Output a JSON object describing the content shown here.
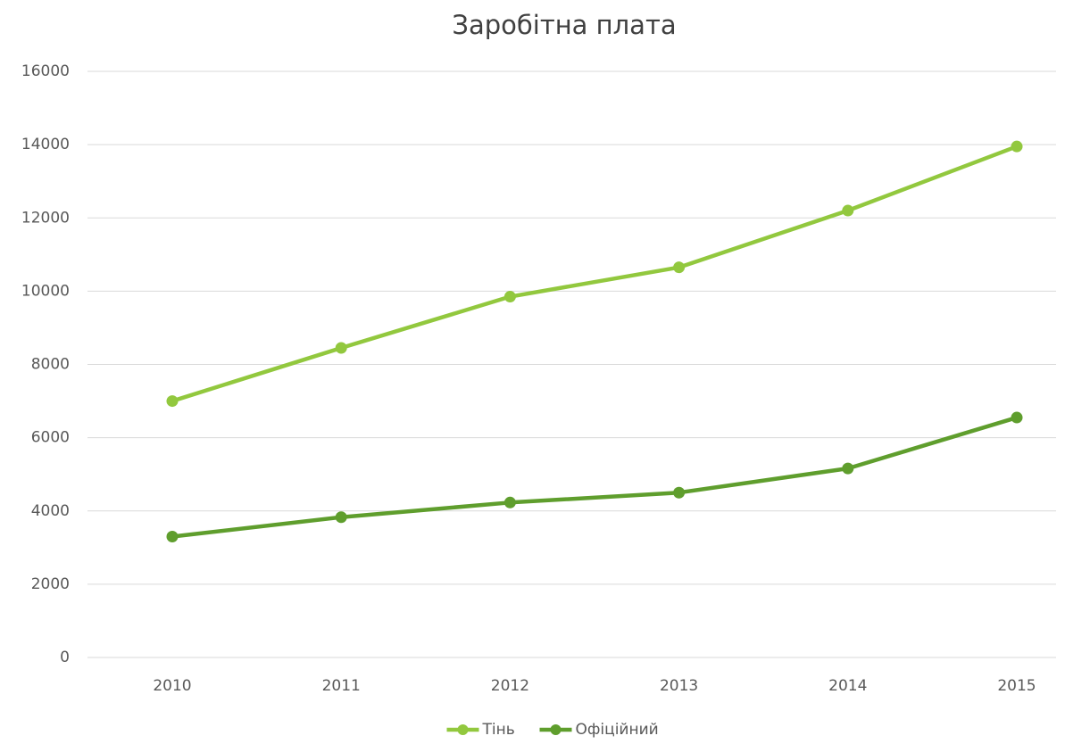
{
  "chart_data": {
    "type": "line",
    "title": "Заробітна плата",
    "categories": [
      "2010",
      "2011",
      "2012",
      "2013",
      "2014",
      "2015"
    ],
    "series": [
      {
        "name": "Тінь",
        "color": "#92c83e",
        "values": [
          7000,
          8450,
          9850,
          10650,
          12200,
          13950
        ]
      },
      {
        "name": "Офіційний",
        "color": "#5f9e2d",
        "values": [
          3300,
          3830,
          4230,
          4500,
          5160,
          6550
        ]
      }
    ],
    "ylim": [
      0,
      16000
    ],
    "yticks": [
      0,
      2000,
      4000,
      6000,
      8000,
      10000,
      12000,
      14000,
      16000
    ],
    "grid": true,
    "legend": "bottom"
  }
}
